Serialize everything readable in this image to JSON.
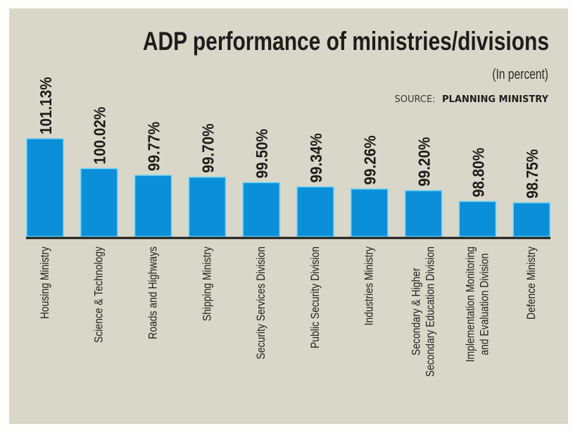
{
  "chart_data": {
    "type": "bar",
    "title": "ADP performance of ministries/divisions",
    "subtitle": "(In percent)",
    "source_prefix": "SOURCE:",
    "source_name": "PLANNING MINISTRY",
    "xlabel": "",
    "ylabel": "",
    "ylim": [
      97.5,
      101.13
    ],
    "grid": false,
    "legend": "none",
    "categories": [
      [
        "Housing Ministry"
      ],
      [
        "Science & Technology"
      ],
      [
        "Roads and Highways"
      ],
      [
        "Shipping Ministry"
      ],
      [
        "Security Services Division"
      ],
      [
        "Public Security Division"
      ],
      [
        "Industries Ministry"
      ],
      [
        "Secondary & Higher",
        "Secondary Education Division"
      ],
      [
        "Implementation Monitoring",
        "and Evaluation Division"
      ],
      [
        "Defence Ministry"
      ]
    ],
    "values": [
      101.13,
      100.02,
      99.77,
      99.7,
      99.5,
      99.34,
      99.26,
      99.2,
      98.8,
      98.75
    ],
    "value_labels": [
      "101.13%",
      "100.02%",
      "99.77%",
      "99.70%",
      "99.50%",
      "99.34%",
      "99.26%",
      "99.20%",
      "98.80%",
      "98.75%"
    ],
    "colors": {
      "bar": "#0b8fd9",
      "bar_outline": "#6fd3f3",
      "background": "#d9d7c9",
      "text": "#1e1d1b"
    }
  }
}
